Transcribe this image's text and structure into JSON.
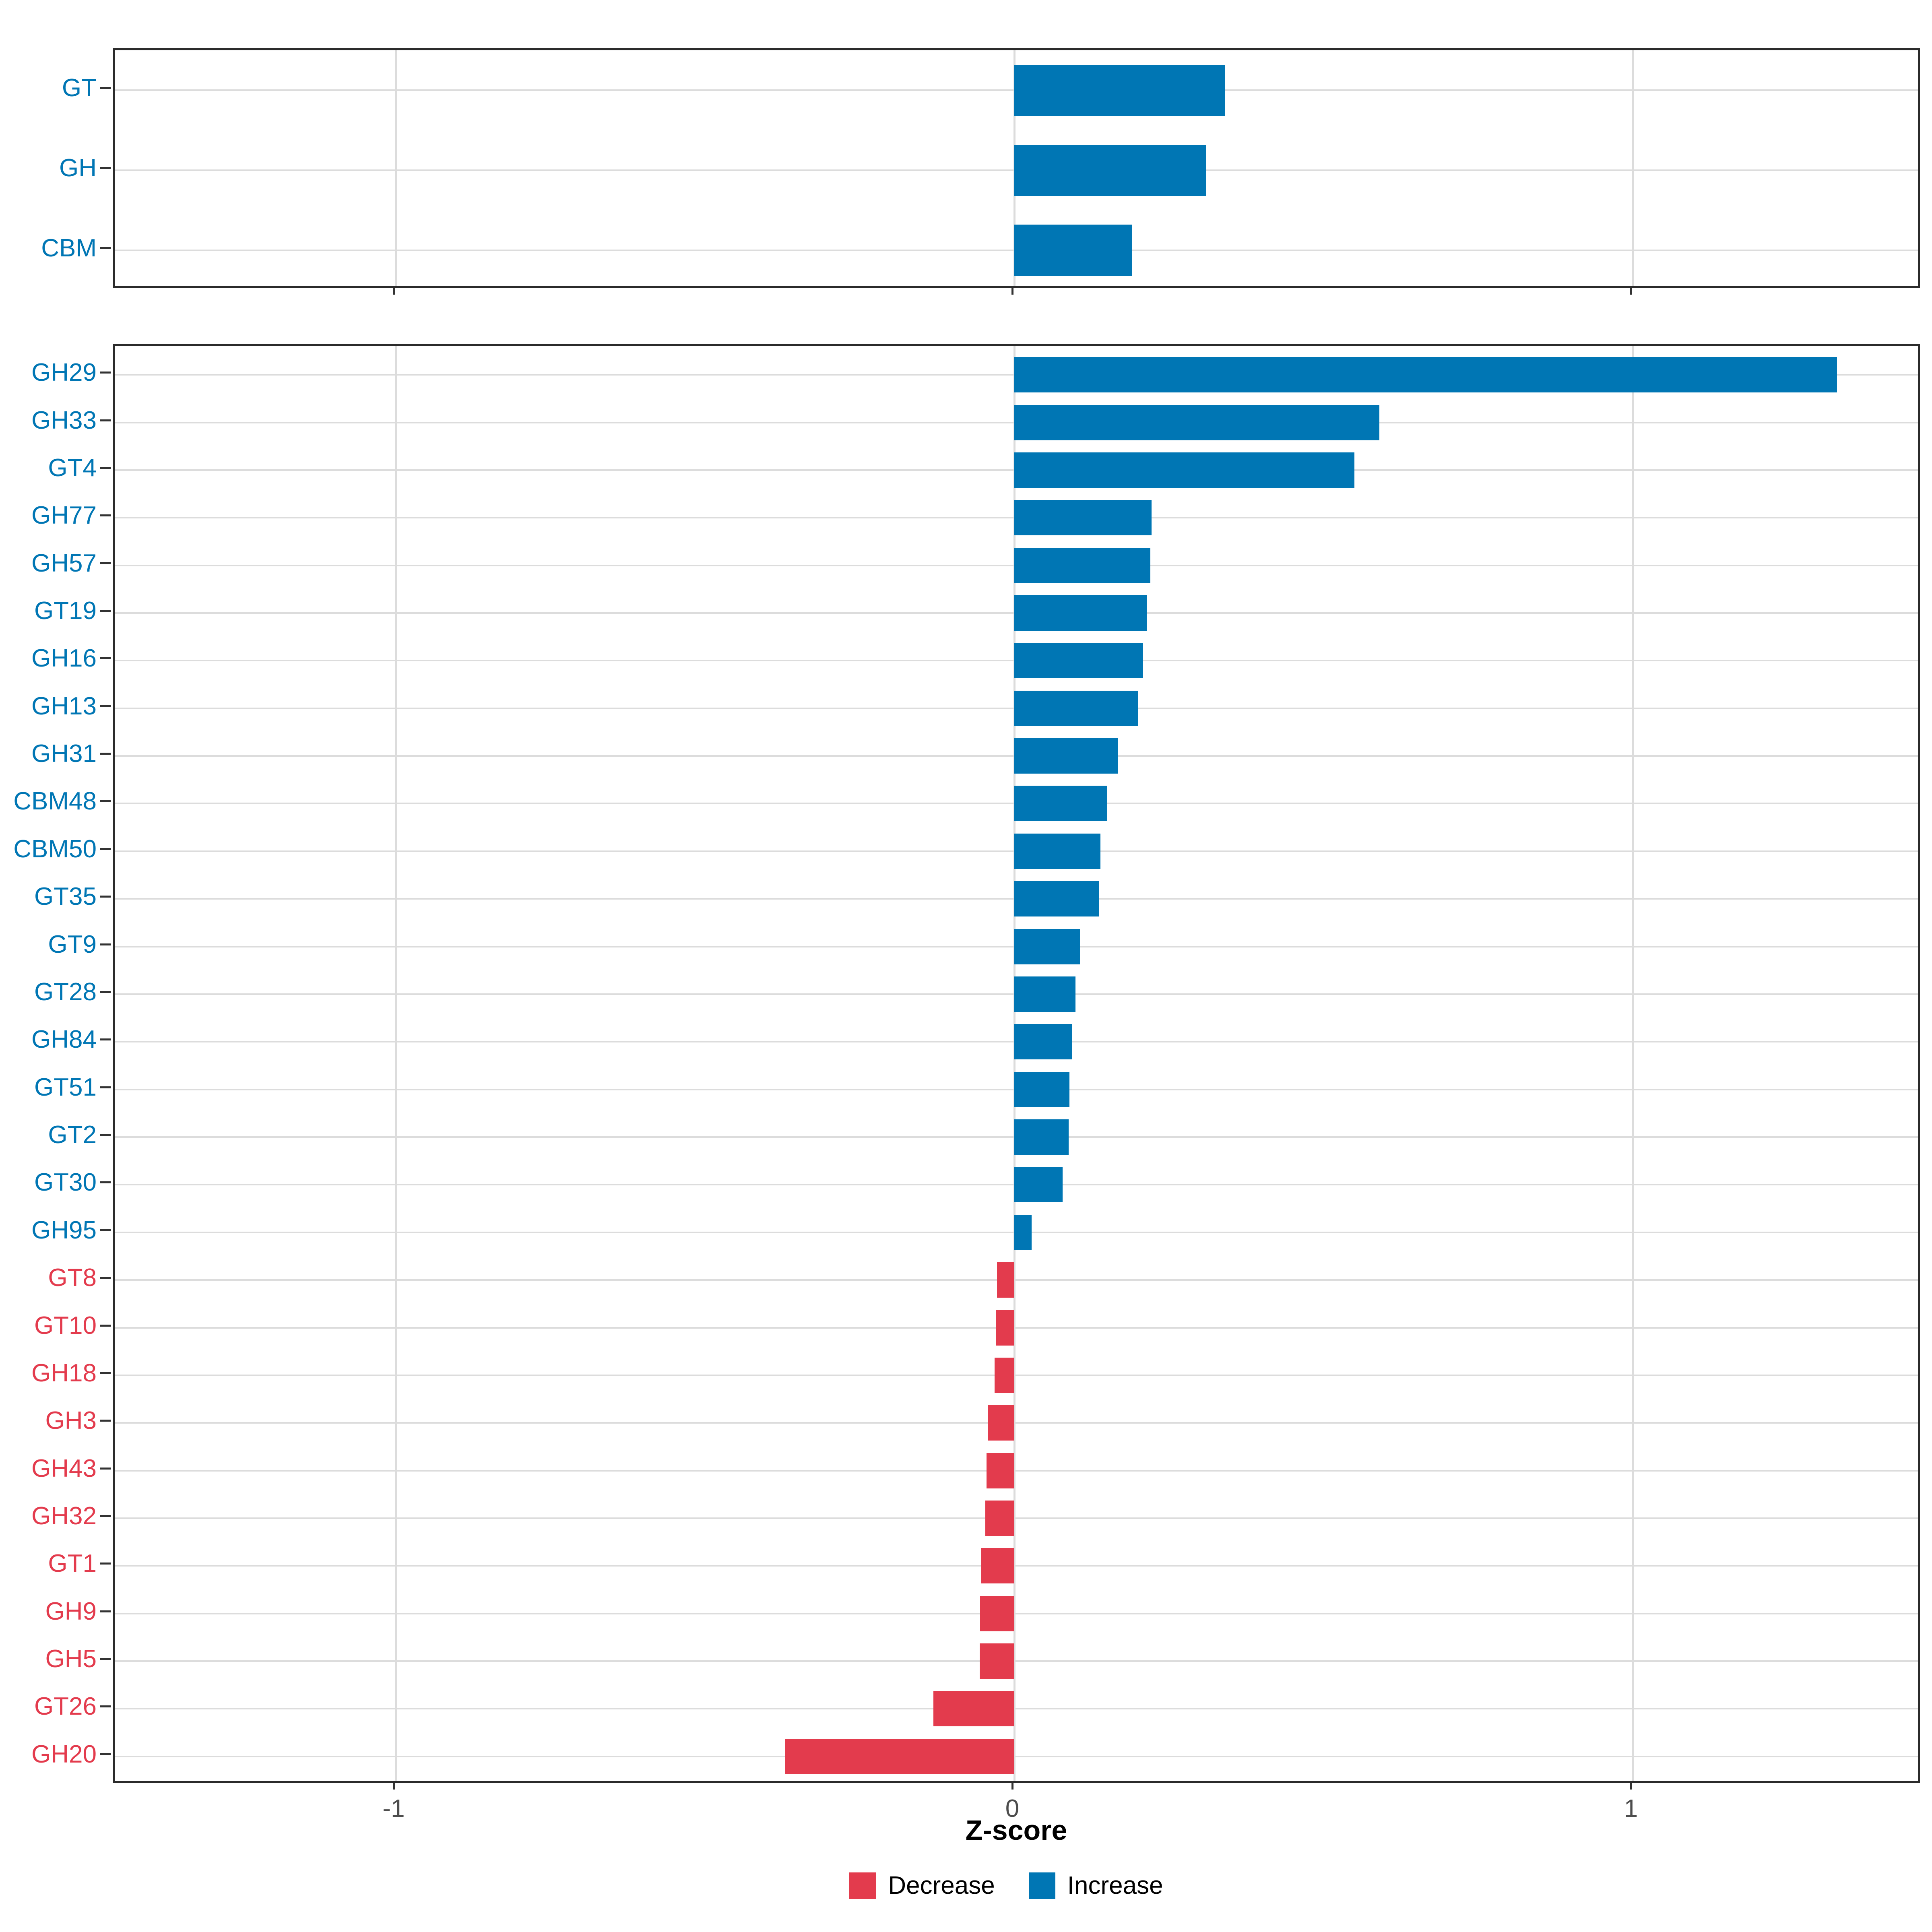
{
  "chart_data": {
    "type": "bar",
    "orientation": "horizontal",
    "xlabel": "Z-score",
    "x_axis": {
      "label": "Z-score",
      "ticks": [
        -1,
        0,
        1
      ],
      "tick_labels": [
        "-1",
        "0",
        "1"
      ],
      "range": [
        -1.45,
        1.47
      ],
      "grid": true
    },
    "colors": {
      "Increase": "#0076B4",
      "Decrease": "#E33B4D"
    },
    "legend": {
      "position": "bottom",
      "items": [
        {
          "label": "Decrease",
          "color": "#E33B4D"
        },
        {
          "label": "Increase",
          "color": "#0076B4"
        }
      ]
    },
    "panels": [
      {
        "id": "top",
        "rows": [
          {
            "label": "GT",
            "value": 0.34,
            "group": "Increase"
          },
          {
            "label": "GH",
            "value": 0.31,
            "group": "Increase"
          },
          {
            "label": "CBM",
            "value": 0.19,
            "group": "Increase"
          }
        ]
      },
      {
        "id": "bottom",
        "rows": [
          {
            "label": "GH29",
            "value": 1.33,
            "group": "Increase"
          },
          {
            "label": "GH33",
            "value": 0.59,
            "group": "Increase"
          },
          {
            "label": "GT4",
            "value": 0.55,
            "group": "Increase"
          },
          {
            "label": "GH77",
            "value": 0.222,
            "group": "Increase"
          },
          {
            "label": "GH57",
            "value": 0.22,
            "group": "Increase"
          },
          {
            "label": "GT19",
            "value": 0.215,
            "group": "Increase"
          },
          {
            "label": "GH16",
            "value": 0.208,
            "group": "Increase"
          },
          {
            "label": "GH13",
            "value": 0.2,
            "group": "Increase"
          },
          {
            "label": "GH31",
            "value": 0.167,
            "group": "Increase"
          },
          {
            "label": "CBM48",
            "value": 0.15,
            "group": "Increase"
          },
          {
            "label": "CBM50",
            "value": 0.139,
            "group": "Increase"
          },
          {
            "label": "GT35",
            "value": 0.137,
            "group": "Increase"
          },
          {
            "label": "GT9",
            "value": 0.106,
            "group": "Increase"
          },
          {
            "label": "GT28",
            "value": 0.099,
            "group": "Increase"
          },
          {
            "label": "GH84",
            "value": 0.094,
            "group": "Increase"
          },
          {
            "label": "GT51",
            "value": 0.089,
            "group": "Increase"
          },
          {
            "label": "GT2",
            "value": 0.088,
            "group": "Increase"
          },
          {
            "label": "GT30",
            "value": 0.078,
            "group": "Increase"
          },
          {
            "label": "GH95",
            "value": 0.028,
            "group": "Increase"
          },
          {
            "label": "GT8",
            "value": -0.028,
            "group": "Decrease"
          },
          {
            "label": "GT10",
            "value": -0.03,
            "group": "Decrease"
          },
          {
            "label": "GH18",
            "value": -0.032,
            "group": "Decrease"
          },
          {
            "label": "GH3",
            "value": -0.042,
            "group": "Decrease"
          },
          {
            "label": "GH43",
            "value": -0.045,
            "group": "Decrease"
          },
          {
            "label": "GH32",
            "value": -0.047,
            "group": "Decrease"
          },
          {
            "label": "GT1",
            "value": -0.054,
            "group": "Decrease"
          },
          {
            "label": "GH9",
            "value": -0.055,
            "group": "Decrease"
          },
          {
            "label": "GH5",
            "value": -0.056,
            "group": "Decrease"
          },
          {
            "label": "GT26",
            "value": -0.131,
            "group": "Decrease"
          },
          {
            "label": "GH20",
            "value": -0.37,
            "group": "Decrease"
          }
        ]
      }
    ]
  }
}
